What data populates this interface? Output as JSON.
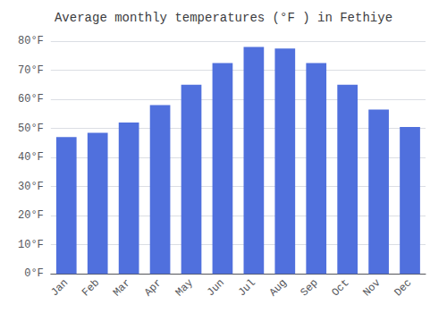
{
  "chart_data": {
    "type": "bar",
    "title": "Average monthly temperatures (°F ) in Fethiye",
    "categories": [
      "Jan",
      "Feb",
      "Mar",
      "Apr",
      "May",
      "Jun",
      "Jul",
      "Aug",
      "Sep",
      "Oct",
      "Nov",
      "Dec"
    ],
    "values": [
      47,
      48.5,
      52,
      58,
      65,
      72.5,
      78,
      77.5,
      72.5,
      65,
      56.5,
      50.5
    ],
    "ylim": [
      0,
      80
    ],
    "yticks": [
      {
        "value": 0,
        "label": "0°F"
      },
      {
        "value": 10,
        "label": "10°F"
      },
      {
        "value": 20,
        "label": "20°F"
      },
      {
        "value": 30,
        "label": "30°F"
      },
      {
        "value": 40,
        "label": "40°F"
      },
      {
        "value": 50,
        "label": "50°F"
      },
      {
        "value": 60,
        "label": "60°F"
      },
      {
        "value": 70,
        "label": "70°F"
      },
      {
        "value": 80,
        "label": "80°F"
      }
    ],
    "grid": true
  }
}
